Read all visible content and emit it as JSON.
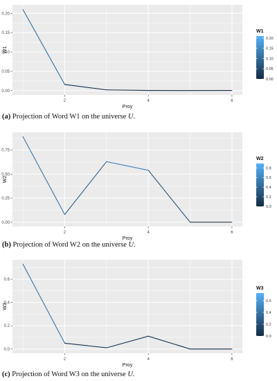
{
  "panels": [
    {
      "caption": {
        "label": "(a)",
        "text": "Projection of Word W1 on the universe ",
        "var": "U",
        "end": "."
      }
    },
    {
      "caption": {
        "label": "(b)",
        "text": "Projection of Word W2 on the universe ",
        "var": "U",
        "end": "."
      }
    },
    {
      "caption": {
        "label": "(c)",
        "text": "Projection of Word W3 on the universe ",
        "var": "U",
        "end": "."
      }
    }
  ],
  "colors": {
    "panel_bg": "#ebebeb",
    "grid": "#ffffff",
    "gradient_low": "#132b43",
    "gradient_high": "#56b1f7",
    "axis_text": "#4d4d4d"
  },
  "chart_data": [
    {
      "type": "line",
      "xlabel": "Proy",
      "ylabel": "W1",
      "x": [
        1,
        2,
        3,
        4,
        5,
        6
      ],
      "values": [
        0.21,
        0.016,
        0.002,
        0.0005,
        0.0003,
        0.0005
      ],
      "xlim": [
        0.75,
        6.25
      ],
      "ylim": [
        -0.011,
        0.222
      ],
      "xticks": [
        2,
        4,
        6
      ],
      "yticks": [
        0.0,
        0.05,
        0.1,
        0.15,
        0.2
      ],
      "ytick_labels": [
        "0.00",
        "0.05",
        "0.10",
        "0.15",
        "0.20"
      ],
      "color_scale": "continuous (line colored by W1)",
      "legend": {
        "title": "W1",
        "ticks": [
          0.0,
          0.05,
          0.1,
          0.15,
          0.2
        ],
        "tick_labels": [
          "0.00",
          "0.05",
          "0.10",
          "0.15",
          "0.20"
        ],
        "min": 0.0,
        "max": 0.21,
        "position": "right"
      },
      "grid": true
    },
    {
      "type": "line",
      "xlabel": "Proy",
      "ylabel": "W2",
      "x": [
        1,
        2,
        3,
        4,
        5,
        6
      ],
      "values": [
        0.89,
        0.08,
        0.63,
        0.54,
        0.0,
        0.0
      ],
      "xlim": [
        0.75,
        6.25
      ],
      "ylim": [
        -0.045,
        0.935
      ],
      "xticks": [
        2,
        4,
        6
      ],
      "yticks": [
        0.0,
        0.25,
        0.5,
        0.75
      ],
      "ytick_labels": [
        "0.00",
        "0.25",
        "0.50",
        "0.75"
      ],
      "color_scale": "continuous (line colored by W2)",
      "legend": {
        "title": "W2",
        "ticks": [
          0.0,
          0.2,
          0.4,
          0.6,
          0.8
        ],
        "tick_labels": [
          "0.0",
          "0.2",
          "0.4",
          "0.6",
          "0.8"
        ],
        "min": 0.0,
        "max": 0.89,
        "position": "right"
      },
      "grid": true
    },
    {
      "type": "line",
      "xlabel": "Proy",
      "ylabel": "W3",
      "x": [
        1,
        2,
        3,
        4,
        5,
        6
      ],
      "values": [
        0.73,
        0.05,
        0.01,
        0.11,
        0.0,
        0.0
      ],
      "xlim": [
        0.75,
        6.25
      ],
      "ylim": [
        -0.037,
        0.767
      ],
      "xticks": [
        2,
        4,
        6
      ],
      "yticks": [
        0.0,
        0.2,
        0.4,
        0.6
      ],
      "ytick_labels": [
        "0.0",
        "0.2",
        "0.4",
        "0.6"
      ],
      "color_scale": "continuous (line colored by W3)",
      "legend": {
        "title": "W3",
        "ticks": [
          0.0,
          0.2,
          0.4,
          0.6
        ],
        "tick_labels": [
          "0.0",
          "0.2",
          "0.4",
          "0.6"
        ],
        "min": 0.0,
        "max": 0.73,
        "position": "right"
      },
      "grid": true
    }
  ]
}
